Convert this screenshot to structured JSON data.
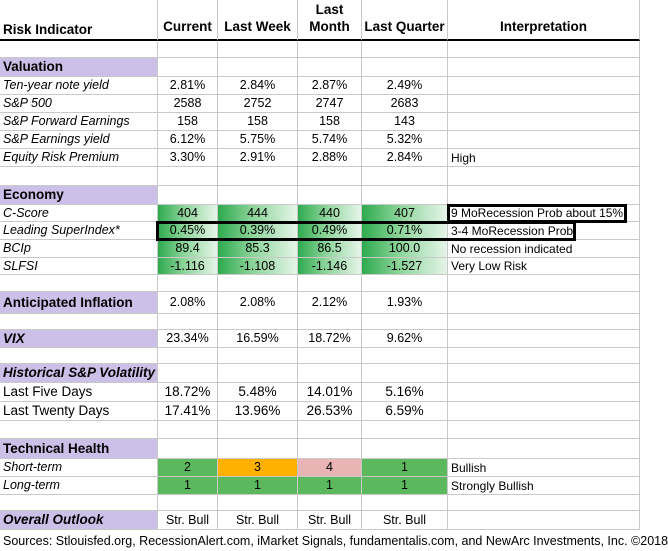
{
  "columns": {
    "risk_indicator": "Risk Indicator",
    "current": "Current",
    "last_week": "Last Week",
    "last_month": "Last Month",
    "last_quarter": "Last Quarter",
    "interpretation": "Interpretation"
  },
  "sections": {
    "valuation": "Valuation",
    "economy": "Economy",
    "anticipated_inflation": "Anticipated Inflation",
    "vix": "VIX",
    "historical_volatility": "Historical  S&P Volatility",
    "technical_health": "Technical Health",
    "overall_outlook": "Overall Outlook"
  },
  "rows": {
    "ten_year": {
      "label": "Ten-year note yield",
      "values": [
        "2.81%",
        "2.84%",
        "2.87%",
        "2.49%"
      ],
      "interpretation": ""
    },
    "sp500": {
      "label": "S&P 500",
      "values": [
        "2588",
        "2752",
        "2747",
        "2683"
      ],
      "interpretation": ""
    },
    "sp_fwd": {
      "label": "S&P Forward Earnings",
      "values": [
        "158",
        "158",
        "158",
        "143"
      ],
      "interpretation": ""
    },
    "sp_yield": {
      "label": "S&P Earnings yield",
      "values": [
        "6.12%",
        "5.75%",
        "5.74%",
        "5.32%"
      ],
      "interpretation": ""
    },
    "erp": {
      "label": "Equity Risk Premium",
      "values": [
        "3.30%",
        "2.91%",
        "2.88%",
        "2.84%"
      ],
      "interpretation": "High"
    },
    "cscore": {
      "label": "C-Score",
      "values": [
        "404",
        "444",
        "440",
        "407"
      ],
      "interpretation": "9 MoRecession Prob about 15%"
    },
    "lsi": {
      "label": "Leading SuperIndex*",
      "values": [
        "0.45%",
        "0.39%",
        "0.49%",
        "0.71%"
      ],
      "interpretation": "3-4 MoRecession Prob"
    },
    "bcip": {
      "label": "BCIp",
      "values": [
        "89.4",
        "85.3",
        "86.5",
        "100.0"
      ],
      "interpretation": "No recession indicated"
    },
    "slfsi": {
      "label": "SLFSI",
      "values": [
        "-1.116",
        "-1.108",
        "-1.146",
        "-1.527"
      ],
      "interpretation": "Very Low Risk"
    },
    "inflation": {
      "values": [
        "2.08%",
        "2.08%",
        "2.12%",
        "1.93%"
      ]
    },
    "vix": {
      "values": [
        "23.34%",
        "16.59%",
        "18.72%",
        "9.62%"
      ]
    },
    "five_day": {
      "label": "Last Five Days",
      "values": [
        "18.72%",
        "5.48%",
        "14.01%",
        "5.16%"
      ]
    },
    "twenty_day": {
      "label": "Last Twenty Days",
      "values": [
        "17.41%",
        "13.96%",
        "26.53%",
        "6.59%"
      ]
    },
    "short_term": {
      "label": "Short-term",
      "values": [
        "2",
        "3",
        "4",
        "1"
      ],
      "interpretation": "Bullish"
    },
    "long_term": {
      "label": "Long-term",
      "values": [
        "1",
        "1",
        "1",
        "1"
      ],
      "interpretation": "Strongly Bullish"
    },
    "outlook": {
      "values": [
        "Str. Bull",
        "Str. Bull",
        "Str. Bull",
        "Str. Bull"
      ]
    }
  },
  "colors": {
    "section_bg": "#ccc0e8",
    "gradient_green": "#2eaa4e",
    "score_green": "#5cb85c",
    "score_orange": "#ffb000",
    "score_pink": "#e8b4b4"
  },
  "footer": "Sources: Stlouisfed.org, RecessionAlert.com, iMarket Signals, fundamentalis.com, and NewArc Investments, Inc. ©2018"
}
